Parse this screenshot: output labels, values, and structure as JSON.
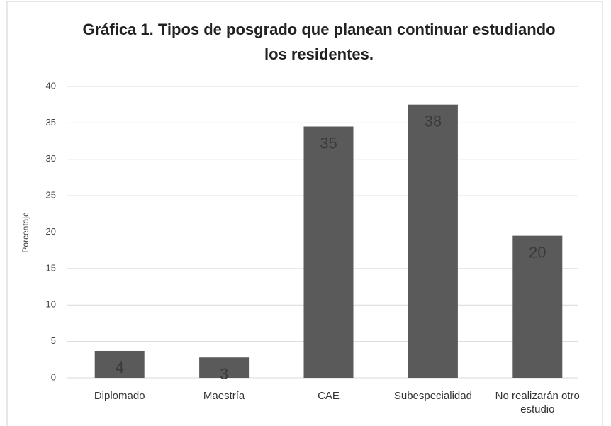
{
  "chart_data": {
    "type": "bar",
    "title": "Gráfica 1. Tipos de posgrado que planean continuar estudiando los residentes.",
    "y_label": "Porcentaje",
    "categories": [
      "Diplomado",
      "Maestría",
      "CAE",
      "Subespecialidad",
      "No realizarán otro estudio"
    ],
    "values": [
      3.7,
      2.8,
      34.5,
      37.5,
      19.5
    ],
    "value_labels": [
      "4",
      "3",
      "35",
      "38",
      "20"
    ],
    "color": "#5a5a5a",
    "ylim": [
      0,
      40
    ],
    "yticks": [
      0,
      5,
      10,
      15,
      20,
      25,
      30,
      35,
      40
    ],
    "grid": true
  }
}
